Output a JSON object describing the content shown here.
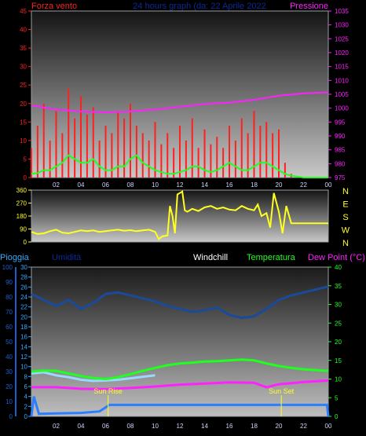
{
  "header": {
    "left_title": "Forza vento",
    "center_title": "24 hours graph (da:  22 Aprile 2022",
    "right_title": "Pressione"
  },
  "colors": {
    "red": "#ff2020",
    "green": "#20ff20",
    "magenta": "#ff20ff",
    "yellow": "#ffff20",
    "navy": "#0a2a9a",
    "blue_axis": "#1a5fd0",
    "cyan_axis": "#33aaff",
    "deep_blue": "#1a4a9a",
    "light_blue": "#9ad8ff",
    "rain_blue": "#2a7fff",
    "white": "#ffffff",
    "frame": "#9aa0a6"
  },
  "chart_data": [
    {
      "type": "line",
      "name": "wind-pressure",
      "xlabels": [
        "02",
        "04",
        "06",
        "08",
        "10",
        "12",
        "14",
        "16",
        "18",
        "20",
        "22",
        "00"
      ],
      "xrange": [
        0,
        24
      ],
      "ylim_left": [
        0,
        45
      ],
      "yticks_left": [
        0,
        5,
        10,
        15,
        20,
        25,
        30,
        35,
        40,
        45
      ],
      "ylim_right": [
        975,
        1035
      ],
      "yticks_right": [
        975,
        980,
        985,
        990,
        995,
        1000,
        1005,
        1010,
        1015,
        1020,
        1025,
        1030,
        1035
      ],
      "series": [
        {
          "name": "Forza vento",
          "axis": "left",
          "style": "bars",
          "x": [
            0,
            0.5,
            1,
            1.5,
            2,
            2.5,
            3,
            3.5,
            4,
            4.5,
            5,
            5.5,
            6,
            6.5,
            7,
            7.5,
            8,
            8.5,
            9,
            9.5,
            10,
            10.5,
            11,
            11.5,
            12,
            12.5,
            13,
            13.5,
            14,
            14.5,
            15,
            15.5,
            16,
            16.5,
            17,
            17.5,
            18,
            18.5,
            19,
            19.5,
            20,
            20.5,
            21,
            22,
            23,
            24
          ],
          "y": [
            8,
            14,
            20,
            10,
            18,
            12,
            24,
            16,
            22,
            17,
            19,
            10,
            14,
            12,
            18,
            16,
            20,
            14,
            12,
            10,
            15,
            9,
            12,
            8,
            14,
            10,
            16,
            8,
            13,
            9,
            11,
            8,
            14,
            10,
            16,
            12,
            18,
            14,
            15,
            12,
            13,
            4,
            1,
            0,
            0,
            0
          ]
        },
        {
          "name": "wind-average",
          "axis": "left",
          "style": "line",
          "x": [
            0,
            0.5,
            1,
            1.5,
            2,
            2.5,
            3,
            3.5,
            4,
            4.5,
            5,
            5.5,
            6,
            6.5,
            7,
            7.5,
            8,
            8.5,
            9,
            9.5,
            10,
            10.5,
            11,
            11.5,
            12,
            12.5,
            13,
            13.5,
            14,
            14.5,
            15,
            15.5,
            16,
            16.5,
            17,
            17.5,
            18,
            18.5,
            19,
            19.5,
            20,
            20.5,
            21,
            22,
            23,
            24
          ],
          "y": [
            1,
            1.2,
            2,
            2,
            3,
            4,
            6,
            5,
            4,
            4,
            5,
            3,
            2,
            2,
            3,
            3,
            5,
            6,
            4,
            3,
            2,
            1.5,
            1,
            1,
            1.5,
            2,
            3,
            3,
            2,
            1.5,
            2,
            3,
            4,
            3,
            2,
            2,
            3,
            4,
            4,
            3,
            2,
            1,
            0.5,
            0,
            0,
            0
          ]
        },
        {
          "name": "Pressione",
          "axis": "right",
          "style": "line",
          "x": [
            0,
            2,
            4,
            6,
            8,
            10,
            12,
            14,
            16,
            18,
            20,
            22,
            24
          ],
          "y": [
            1001,
            999.5,
            998.8,
            998.5,
            998.8,
            999.5,
            1000.5,
            1001.5,
            1002,
            1003,
            1004.5,
            1005.3,
            1005.7
          ]
        }
      ]
    },
    {
      "type": "line",
      "name": "wind-direction",
      "xrange": [
        0,
        24
      ],
      "ylim": [
        0,
        360
      ],
      "yticks_left": [
        0,
        90,
        180,
        270,
        360
      ],
      "yticks_right_labels": [
        "N",
        "W",
        "S",
        "E",
        "N"
      ],
      "series": [
        {
          "name": "direction",
          "x": [
            0,
            0.5,
            1,
            1.5,
            2,
            2.5,
            3,
            3.5,
            4,
            4.5,
            5,
            5.5,
            6,
            6.5,
            7,
            7.5,
            8,
            8.5,
            9,
            9.5,
            10,
            10.3,
            10.6,
            11,
            11.2,
            11.4,
            11.6,
            11.8,
            12,
            12.2,
            12.4,
            12.6,
            12.8,
            13,
            13.5,
            14,
            14.5,
            15,
            15.5,
            16,
            16.5,
            17,
            17.5,
            18,
            18.3,
            18.6,
            19,
            19.3,
            19.6,
            20,
            20.3,
            20.6,
            21,
            22,
            23,
            24
          ],
          "y": [
            70,
            55,
            60,
            75,
            85,
            65,
            60,
            70,
            80,
            75,
            80,
            70,
            75,
            80,
            85,
            78,
            82,
            75,
            80,
            85,
            70,
            20,
            40,
            45,
            250,
            180,
            60,
            330,
            340,
            350,
            220,
            210,
            220,
            230,
            215,
            240,
            250,
            230,
            240,
            225,
            220,
            250,
            230,
            220,
            260,
            180,
            200,
            100,
            340,
            210,
            60,
            250,
            130,
            130,
            130,
            130
          ]
        }
      ]
    },
    {
      "type": "line",
      "name": "rain-humidity-temperature",
      "xlabels": [
        "02",
        "04",
        "06",
        "08",
        "10",
        "12",
        "14",
        "16",
        "18",
        "20",
        "22",
        "00"
      ],
      "xrange": [
        0,
        24
      ],
      "ylim_humidity": [
        0,
        100
      ],
      "yticks_humidity": [
        0,
        10,
        20,
        30,
        40,
        50,
        60,
        70,
        80,
        90,
        100
      ],
      "ylim_rain": [
        0,
        30
      ],
      "yticks_rain": [
        0,
        2,
        4,
        6,
        8,
        10,
        12,
        14,
        16,
        18,
        20,
        22,
        24,
        26,
        28,
        30
      ],
      "ylim_temp": [
        0,
        40
      ],
      "yticks_temp": [
        0,
        5,
        10,
        15,
        20,
        25,
        30,
        35,
        40
      ],
      "legend": [
        "Pioggia",
        "Umidità",
        "Windchill",
        "Temperatura",
        "Dew Point (°C)"
      ],
      "annotations": [
        {
          "text": "Sun Rise",
          "x": 6.2
        },
        {
          "text": "Sun Set",
          "x": 20.2
        }
      ],
      "series": [
        {
          "name": "Umidità",
          "axis": "humidity",
          "x": [
            0,
            2,
            3,
            4,
            5,
            6,
            7,
            8,
            9,
            10,
            11,
            12,
            13,
            14,
            15,
            16,
            17,
            18,
            19,
            20,
            21,
            22,
            23,
            24
          ],
          "y": [
            82,
            74,
            78,
            72,
            76,
            82,
            83,
            81,
            79,
            77,
            74,
            72,
            70,
            71,
            73,
            68,
            66,
            67,
            72,
            78,
            81,
            83,
            85,
            87
          ]
        },
        {
          "name": "Windchill",
          "axis": "temp",
          "x": [
            0,
            1,
            2,
            3,
            4,
            5,
            6,
            7,
            8,
            9,
            10
          ],
          "y": [
            11.5,
            11.8,
            11,
            10.5,
            9.8,
            9.5,
            9.6,
            9.8,
            10.2,
            10.6,
            11
          ]
        },
        {
          "name": "Temperatura",
          "axis": "temp",
          "x": [
            0,
            1,
            2,
            3,
            4,
            5,
            6,
            7,
            8,
            9,
            10,
            11,
            12,
            13,
            14,
            15,
            16,
            17,
            18,
            19,
            20,
            21,
            22,
            23,
            24
          ],
          "y": [
            12,
            12.3,
            12.2,
            11.5,
            10.8,
            10.3,
            10,
            10.5,
            11.3,
            12.2,
            13,
            13.7,
            14.2,
            14.4,
            14.7,
            14.8,
            15,
            15.2,
            15,
            14.2,
            13.5,
            13,
            12.6,
            12.4,
            12.2
          ]
        },
        {
          "name": "Dew Point",
          "axis": "temp",
          "x": [
            0,
            2,
            4,
            6,
            8,
            10,
            12,
            14,
            16,
            18,
            19,
            20,
            22,
            24
          ],
          "y": [
            7.8,
            7.8,
            7.4,
            7.3,
            7.6,
            8,
            8.5,
            8.8,
            9.1,
            9,
            7.8,
            8.6,
            9.2,
            9.6
          ]
        },
        {
          "name": "Pioggia",
          "axis": "rain",
          "x": [
            0,
            0.2,
            0.6,
            2,
            4,
            5.5,
            6,
            6.3,
            8,
            10,
            12,
            14,
            16,
            18,
            20,
            22,
            23.9,
            24
          ],
          "y": [
            0,
            4,
            0.5,
            0.6,
            0.7,
            1,
            1.8,
            2.3,
            2.3,
            2.3,
            2.3,
            2.3,
            2.3,
            2.3,
            2.3,
            2.3,
            2.3,
            0
          ]
        }
      ]
    }
  ]
}
